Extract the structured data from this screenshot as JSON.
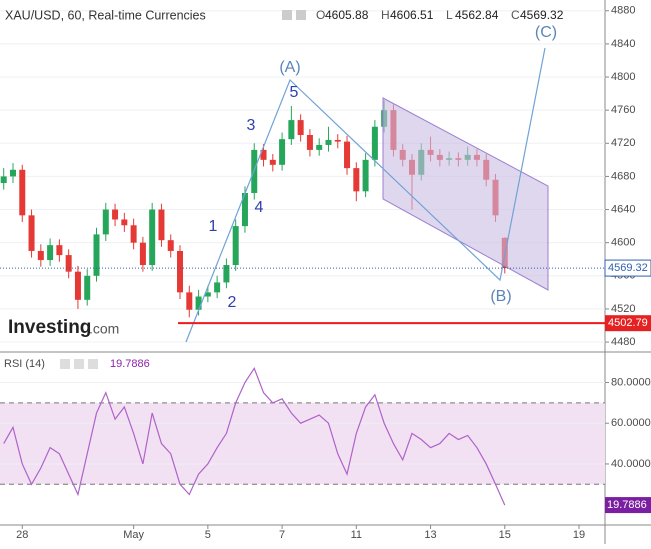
{
  "chart_data": [
    {
      "type": "candlestick",
      "title": "XAU/USD, 60, Real-time Currencies",
      "ohlc_summary": [
        {
          "label": "O",
          "value": 4605.88
        },
        {
          "label": "H",
          "value": 4606.51
        },
        {
          "label": "L",
          "value": 4562.84
        },
        {
          "label": "C",
          "value": 4569.32
        }
      ],
      "x": [
        -0.5,
        -0.25,
        0,
        0.25,
        0.5,
        0.75,
        1,
        1.25,
        1.5,
        1.75,
        2,
        2.25,
        2.5,
        2.75,
        3,
        3.25,
        3.5,
        3.75,
        4,
        4.25,
        4.5,
        4.75,
        5,
        5.25,
        5.5,
        5.75,
        6,
        6.25,
        6.5,
        6.75,
        7,
        7.25,
        7.5,
        7.75,
        8,
        8.25,
        8.5,
        8.75,
        9,
        9.25,
        9.5,
        9.75,
        10,
        10.25,
        10.5,
        10.75,
        11,
        11.25,
        11.5,
        11.75,
        12,
        12.25,
        12.5,
        12.75,
        13
      ],
      "ohlc": [
        [
          4672,
          4690,
          4664,
          4680
        ],
        [
          4680,
          4696,
          4672,
          4688
        ],
        [
          4688,
          4694,
          4625,
          4633
        ],
        [
          4633,
          4640,
          4582,
          4590
        ],
        [
          4590,
          4598,
          4571,
          4579
        ],
        [
          4579,
          4605,
          4572,
          4597
        ],
        [
          4597,
          4604,
          4577,
          4585
        ],
        [
          4585,
          4592,
          4557,
          4565
        ],
        [
          4565,
          4572,
          4520,
          4531
        ],
        [
          4531,
          4568,
          4524,
          4560
        ],
        [
          4560,
          4618,
          4553,
          4610
        ],
        [
          4610,
          4648,
          4602,
          4640
        ],
        [
          4640,
          4647,
          4620,
          4628
        ],
        [
          4628,
          4636,
          4613,
          4621
        ],
        [
          4621,
          4629,
          4592,
          4600
        ],
        [
          4600,
          4607,
          4565,
          4573
        ],
        [
          4573,
          4648,
          4566,
          4640
        ],
        [
          4640,
          4647,
          4595,
          4603
        ],
        [
          4603,
          4610,
          4582,
          4590
        ],
        [
          4590,
          4597,
          4532,
          4540
        ],
        [
          4540,
          4548,
          4510,
          4519
        ],
        [
          4519,
          4543,
          4512,
          4535
        ],
        [
          4535,
          4548,
          4528,
          4540
        ],
        [
          4540,
          4560,
          4533,
          4552
        ],
        [
          4552,
          4581,
          4545,
          4573
        ],
        [
          4573,
          4628,
          4566,
          4620
        ],
        [
          4620,
          4668,
          4612,
          4660
        ],
        [
          4660,
          4720,
          4652,
          4712
        ],
        [
          4712,
          4719,
          4692,
          4700
        ],
        [
          4700,
          4707,
          4686,
          4694
        ],
        [
          4694,
          4733,
          4687,
          4725
        ],
        [
          4725,
          4765,
          4718,
          4748
        ],
        [
          4748,
          4755,
          4722,
          4730
        ],
        [
          4730,
          4737,
          4704,
          4712
        ],
        [
          4712,
          4726,
          4705,
          4718
        ],
        [
          4718,
          4740,
          4710,
          4724
        ],
        [
          4724,
          4731,
          4714,
          4722
        ],
        [
          4722,
          4729,
          4682,
          4690
        ],
        [
          4690,
          4697,
          4650,
          4662
        ],
        [
          4662,
          4708,
          4655,
          4700
        ],
        [
          4700,
          4748,
          4692,
          4740
        ],
        [
          4740,
          4772,
          4733,
          4760
        ],
        [
          4760,
          4767,
          4704,
          4712
        ],
        [
          4712,
          4719,
          4692,
          4700
        ],
        [
          4700,
          4707,
          4640,
          4682
        ],
        [
          4682,
          4720,
          4675,
          4712
        ],
        [
          4712,
          4728,
          4698,
          4706
        ],
        [
          4706,
          4713,
          4692,
          4700
        ],
        [
          4700,
          4710,
          4693,
          4702
        ],
        [
          4702,
          4709,
          4692,
          4700
        ],
        [
          4700,
          4716,
          4693,
          4706
        ],
        [
          4706,
          4713,
          4692,
          4700
        ],
        [
          4700,
          4707,
          4668,
          4676
        ],
        [
          4676,
          4683,
          4625,
          4633
        ],
        [
          4605.88,
          4606.51,
          4562.84,
          4569.32
        ]
      ],
      "up_color": "#26a65b",
      "down_color": "#e53935",
      "xlim": [
        -0.6,
        15.7
      ],
      "ylim": [
        4468,
        4893
      ],
      "yticks": [
        4480,
        4520,
        4560,
        4600,
        4640,
        4680,
        4720,
        4760,
        4800,
        4840,
        4880
      ],
      "last_price": 4569.32,
      "level": 4502.79,
      "annotations": [
        "(A)",
        "5",
        "3",
        "1",
        "4",
        "2",
        "(B)",
        "(C)"
      ],
      "logo": {
        "name": "Investing",
        "suffix": ".com"
      }
    },
    {
      "type": "line",
      "title": "RSI (14)",
      "last_value": 19.7886,
      "color": "#b062c8",
      "x": [
        -0.5,
        -0.25,
        0,
        0.25,
        0.5,
        0.75,
        1,
        1.25,
        1.5,
        1.75,
        2,
        2.25,
        2.5,
        2.75,
        3,
        3.25,
        3.5,
        3.75,
        4,
        4.25,
        4.5,
        4.75,
        5,
        5.25,
        5.5,
        5.75,
        6,
        6.25,
        6.5,
        6.75,
        7,
        7.25,
        7.5,
        7.75,
        8,
        8.25,
        8.5,
        8.75,
        9,
        9.25,
        9.5,
        9.75,
        10,
        10.25,
        10.5,
        10.75,
        11,
        11.25,
        11.5,
        11.75,
        12,
        12.25,
        12.5,
        12.75,
        13
      ],
      "values": [
        50,
        58,
        40,
        30,
        38,
        48,
        45,
        35,
        25,
        45,
        65,
        75,
        62,
        68,
        55,
        40,
        65,
        50,
        45,
        30,
        25,
        35,
        40,
        48,
        55,
        70,
        80,
        87,
        75,
        70,
        72,
        65,
        60,
        62,
        64,
        60,
        45,
        35,
        55,
        68,
        74,
        60,
        50,
        42,
        55,
        52,
        48,
        50,
        55,
        52,
        54,
        48,
        40,
        30,
        19.7886
      ],
      "band": [
        30,
        70
      ],
      "xlim": [
        -0.6,
        15.7
      ],
      "xticks": [
        {
          "value": 0,
          "label": "28"
        },
        {
          "value": 3,
          "label": "May"
        },
        {
          "value": 5,
          "label": "5"
        },
        {
          "value": 7,
          "label": "7"
        },
        {
          "value": 9,
          "label": "11"
        },
        {
          "value": 11,
          "label": "13"
        },
        {
          "value": 13,
          "label": "15"
        },
        {
          "value": 15,
          "label": "19"
        }
      ],
      "ylim": [
        10,
        95
      ],
      "yticks": [
        {
          "value": 40,
          "label": "40.0000"
        },
        {
          "value": 60,
          "label": "60.0000"
        },
        {
          "value": 80,
          "label": "80.0000"
        }
      ]
    }
  ]
}
